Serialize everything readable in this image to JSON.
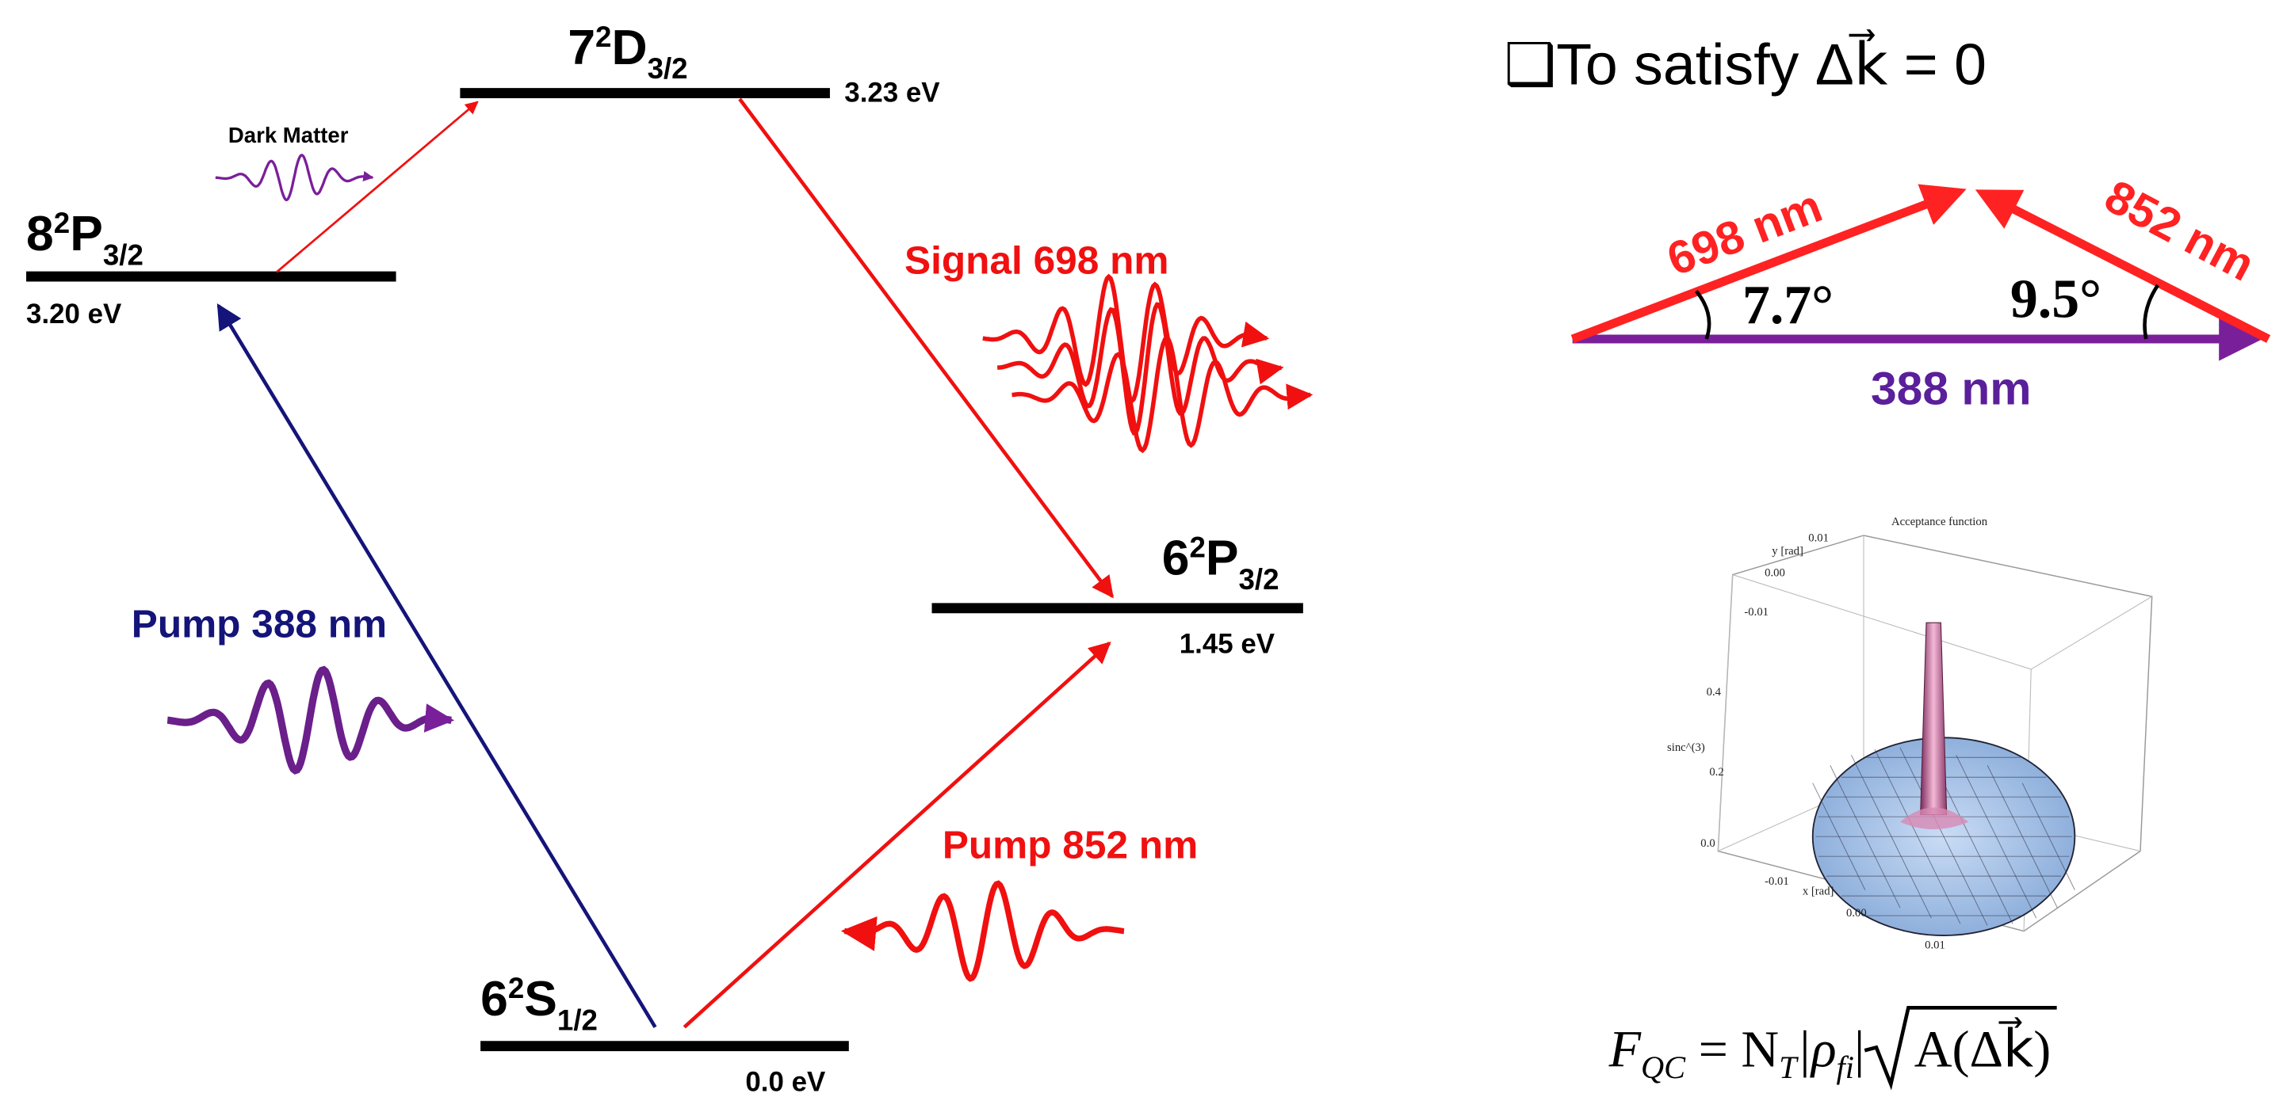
{
  "levels": [
    {
      "n": "8",
      "sup": "2",
      "letter": "P",
      "sub": "3/2",
      "energy": "3.20 eV"
    },
    {
      "n": "7",
      "sup": "2",
      "letter": "D",
      "sub": "3/2",
      "energy": "3.23 eV"
    },
    {
      "n": "6",
      "sup": "2",
      "letter": "P",
      "sub": "3/2",
      "energy": "1.45 eV"
    },
    {
      "n": "6",
      "sup": "2",
      "letter": "S",
      "sub": "1/2",
      "energy": "0.0 eV"
    }
  ],
  "transitions": {
    "dark_matter": "Dark Matter",
    "signal": "Signal 698 nm",
    "pump_388": "Pump 388 nm",
    "pump_852": "Pump 852 nm"
  },
  "phase_matching": {
    "heading": "❑To satisfy Δk⃗ = 0",
    "left_vector": "698 nm",
    "right_vector": "852 nm",
    "base_vector": "388 nm",
    "left_angle": "7.7°",
    "right_angle": "9.5°"
  },
  "inset": {
    "title": "Acceptance function",
    "y_label": "y [rad]",
    "y_ticks": [
      "0.01",
      "0.00",
      "-0.01"
    ],
    "z_label": "sinc^(3)",
    "z_ticks": [
      "0.4",
      "0.2",
      "0.0"
    ],
    "x_label": "x [rad]",
    "x_ticks": [
      "-0.01",
      "0.00",
      "0.01"
    ]
  },
  "formula": {
    "f": "F",
    "f_sub": "QC",
    "eq": " = N",
    "n_sub": "T",
    "rho": "|ρ",
    "rho_sub": "fi",
    "bar": "|",
    "radicand": "A(Δk⃗)"
  }
}
